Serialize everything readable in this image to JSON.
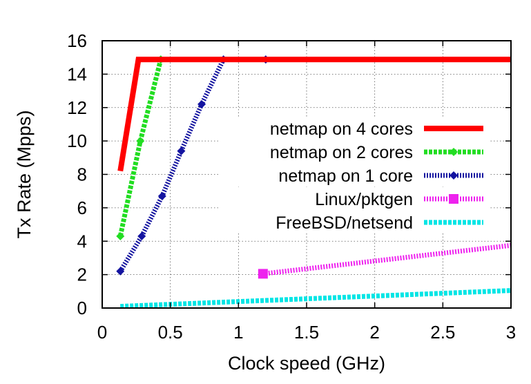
{
  "chart_data": {
    "type": "line",
    "title": "",
    "xlabel": "Clock speed (GHz)",
    "ylabel": "Tx Rate (Mpps)",
    "xlim": [
      0,
      3
    ],
    "ylim": [
      0,
      16
    ],
    "xticks": [
      0,
      0.5,
      1,
      1.5,
      2,
      2.5,
      3
    ],
    "xtick_labels": [
      "0",
      "0.5",
      "1",
      "1.5",
      "2",
      "2.5",
      "3"
    ],
    "yticks": [
      0,
      2,
      4,
      6,
      8,
      10,
      12,
      14,
      16
    ],
    "ytick_labels": [
      "0",
      "2",
      "4",
      "6",
      "8",
      "10",
      "12",
      "14",
      "16"
    ],
    "grid": true,
    "legend_position": "right",
    "series": [
      {
        "name": "netmap on 4 cores",
        "color": "#ff0000",
        "style": "solid",
        "marker": "none",
        "x": [
          0.133,
          0.266,
          3.0
        ],
        "y": [
          8.2,
          14.88,
          14.88
        ]
      },
      {
        "name": "netmap on 2 cores",
        "color": "#22dd22",
        "style": "dashed",
        "marker": "diamond",
        "x": [
          0.133,
          0.28,
          0.43,
          3.0
        ],
        "y": [
          4.3,
          10.0,
          14.88,
          14.88
        ],
        "marker_x": [
          0.133,
          0.28,
          0.43
        ],
        "marker_y": [
          4.3,
          10.0,
          14.88
        ]
      },
      {
        "name": "netmap on 1 core",
        "color": "#1414a0",
        "style": "dotted",
        "marker": "diamond",
        "x": [
          0.133,
          0.29,
          0.44,
          0.58,
          0.73,
          0.89,
          3.0
        ],
        "y": [
          2.2,
          4.3,
          6.7,
          9.4,
          12.2,
          14.88,
          14.88
        ],
        "marker_x": [
          0.133,
          0.29,
          0.44,
          0.58,
          0.73,
          0.89,
          1.2
        ],
        "marker_y": [
          2.2,
          4.3,
          6.7,
          9.4,
          12.2,
          14.88,
          14.88
        ]
      },
      {
        "name": "Linux/pktgen",
        "color": "#ee22ee",
        "style": "dotted",
        "marker": "square",
        "x": [
          1.18,
          3.0
        ],
        "y": [
          2.05,
          3.75
        ],
        "marker_x": [
          1.18
        ],
        "marker_y": [
          2.05
        ]
      },
      {
        "name": "FreeBSD/netsend",
        "color": "#00e5e5",
        "style": "dashed",
        "marker": "none",
        "x": [
          0.133,
          3.0
        ],
        "y": [
          0.1,
          1.05
        ]
      }
    ]
  }
}
